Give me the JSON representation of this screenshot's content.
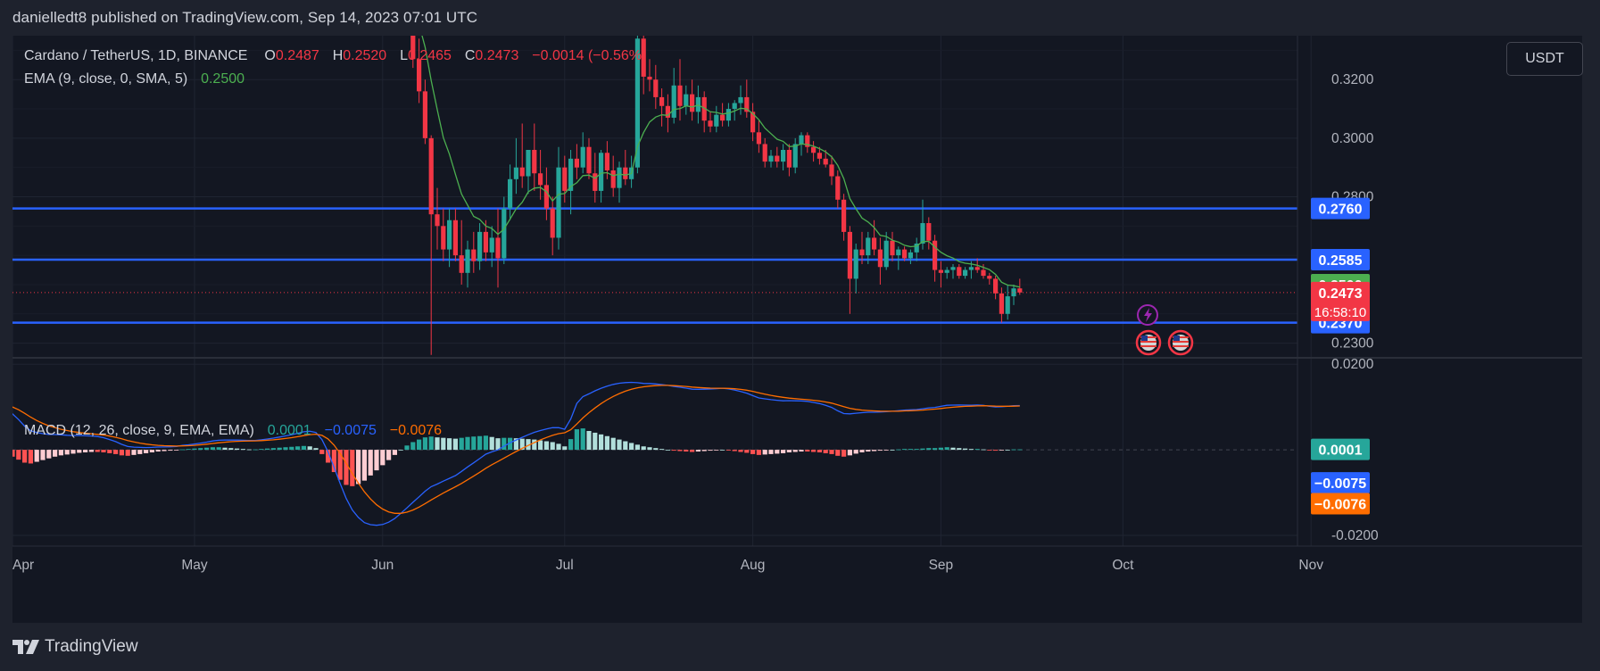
{
  "header": {
    "publisher": "danielledt8 published on TradingView.com, Sep 14, 2023 07:01 UTC"
  },
  "legend": {
    "symbol": "Cardano / TetherUS, 1D, BINANCE",
    "o_label": "O",
    "o_value": "0.2487",
    "h_label": "H",
    "h_value": "0.2520",
    "l_label": "L",
    "l_value": "0.2465",
    "c_label": "C",
    "c_value": "0.2473",
    "change": "−0.0014 (−0.56%)",
    "ema_label": "EMA (9, close, 0, SMA, 5)",
    "ema_value": "0.2500",
    "macd_label": "MACD (12, 26, close, 9, EMA, EMA)",
    "macd_hist": "0.0001",
    "macd_line": "−0.0075",
    "macd_signal": "−0.0076"
  },
  "currency_button": "USDT",
  "footer": {
    "brand": "TradingView"
  },
  "colors": {
    "up": "#26a69a",
    "down": "#f23645",
    "ema": "#4caf50",
    "hline": "#2962ff",
    "macd": "#2962ff",
    "signal": "#ff6d00",
    "hist_up_strong": "#26a69a",
    "hist_up_weak": "#b2dfdb",
    "hist_down_strong": "#ff5252",
    "hist_down_weak": "#ffcdd2"
  },
  "icons": {
    "flash": "lightning-event-icon",
    "flags": [
      "us-flag-icon",
      "us-flag-icon"
    ]
  },
  "chart_data": {
    "type": "candlestick",
    "timeframe": "1D",
    "x_axis": {
      "ticks": [
        {
          "label": "Apr",
          "date": "2023-04-01"
        },
        {
          "label": "May",
          "date": "2023-05-01"
        },
        {
          "label": "Jun",
          "date": "2023-06-01"
        },
        {
          "label": "Jul",
          "date": "2023-07-01"
        },
        {
          "label": "Aug",
          "date": "2023-08-01"
        },
        {
          "label": "Sep",
          "date": "2023-09-01"
        },
        {
          "label": "Oct",
          "date": "2023-10-01"
        },
        {
          "label": "Nov",
          "date": "2023-11-01"
        }
      ]
    },
    "price_axis": {
      "ylim": [
        0.225,
        0.335
      ],
      "ticks": [
        "0.2300",
        "0.2800",
        "0.3000",
        "0.3200"
      ]
    },
    "macd_axis": {
      "ylim": [
        -0.0225,
        0.0215
      ],
      "ticks": [
        "0.0200",
        "-0.0200"
      ]
    },
    "horizontal_levels": [
      {
        "value": 0.276,
        "label": "0.2760"
      },
      {
        "value": 0.2585,
        "label": "0.2585"
      },
      {
        "value": 0.237,
        "label": "0.2370"
      }
    ],
    "price_badges": {
      "ema": "0.2500",
      "last": "0.2473",
      "countdown": "16:58:10",
      "macd_hist": "0.0001",
      "macd_line": "−0.0075",
      "macd_signal": "−0.0076"
    },
    "last_price": 0.2473,
    "candles": [
      {
        "d": "2023-06-05",
        "o": 0.379,
        "h": 0.381,
        "l": 0.347,
        "c": 0.349
      },
      {
        "d": "2023-06-06",
        "o": 0.349,
        "h": 0.352,
        "l": 0.324,
        "c": 0.327
      },
      {
        "d": "2023-06-07",
        "o": 0.327,
        "h": 0.334,
        "l": 0.312,
        "c": 0.316
      },
      {
        "d": "2023-06-08",
        "o": 0.316,
        "h": 0.32,
        "l": 0.298,
        "c": 0.3
      },
      {
        "d": "2023-06-09",
        "o": 0.3,
        "h": 0.301,
        "l": 0.226,
        "c": 0.274
      },
      {
        "d": "2023-06-10",
        "o": 0.274,
        "h": 0.283,
        "l": 0.262,
        "c": 0.27
      },
      {
        "d": "2023-06-11",
        "o": 0.27,
        "h": 0.276,
        "l": 0.258,
        "c": 0.262
      },
      {
        "d": "2023-06-12",
        "o": 0.262,
        "h": 0.276,
        "l": 0.256,
        "c": 0.272
      },
      {
        "d": "2023-06-13",
        "o": 0.272,
        "h": 0.276,
        "l": 0.258,
        "c": 0.26
      },
      {
        "d": "2023-06-14",
        "o": 0.26,
        "h": 0.272,
        "l": 0.25,
        "c": 0.254
      },
      {
        "d": "2023-06-15",
        "o": 0.254,
        "h": 0.265,
        "l": 0.249,
        "c": 0.262
      },
      {
        "d": "2023-06-16",
        "o": 0.262,
        "h": 0.268,
        "l": 0.254,
        "c": 0.258
      },
      {
        "d": "2023-06-17",
        "o": 0.258,
        "h": 0.271,
        "l": 0.255,
        "c": 0.268
      },
      {
        "d": "2023-06-18",
        "o": 0.268,
        "h": 0.272,
        "l": 0.258,
        "c": 0.261
      },
      {
        "d": "2023-06-19",
        "o": 0.261,
        "h": 0.27,
        "l": 0.256,
        "c": 0.266
      },
      {
        "d": "2023-06-20",
        "o": 0.266,
        "h": 0.276,
        "l": 0.249,
        "c": 0.259
      },
      {
        "d": "2023-06-21",
        "o": 0.259,
        "h": 0.28,
        "l": 0.257,
        "c": 0.276
      },
      {
        "d": "2023-06-22",
        "o": 0.276,
        "h": 0.291,
        "l": 0.272,
        "c": 0.286
      },
      {
        "d": "2023-06-23",
        "o": 0.286,
        "h": 0.3,
        "l": 0.281,
        "c": 0.29
      },
      {
        "d": "2023-06-24",
        "o": 0.29,
        "h": 0.305,
        "l": 0.283,
        "c": 0.287
      },
      {
        "d": "2023-06-25",
        "o": 0.287,
        "h": 0.296,
        "l": 0.281,
        "c": 0.296
      },
      {
        "d": "2023-06-26",
        "o": 0.296,
        "h": 0.305,
        "l": 0.282,
        "c": 0.288
      },
      {
        "d": "2023-06-27",
        "o": 0.288,
        "h": 0.296,
        "l": 0.279,
        "c": 0.284
      },
      {
        "d": "2023-06-28",
        "o": 0.284,
        "h": 0.29,
        "l": 0.272,
        "c": 0.276
      },
      {
        "d": "2023-06-29",
        "o": 0.276,
        "h": 0.28,
        "l": 0.26,
        "c": 0.266
      },
      {
        "d": "2023-06-30",
        "o": 0.266,
        "h": 0.297,
        "l": 0.262,
        "c": 0.29
      },
      {
        "d": "2023-07-01",
        "o": 0.29,
        "h": 0.294,
        "l": 0.278,
        "c": 0.282
      },
      {
        "d": "2023-07-02",
        "o": 0.282,
        "h": 0.296,
        "l": 0.274,
        "c": 0.293
      },
      {
        "d": "2023-07-03",
        "o": 0.293,
        "h": 0.298,
        "l": 0.286,
        "c": 0.29
      },
      {
        "d": "2023-07-04",
        "o": 0.29,
        "h": 0.302,
        "l": 0.288,
        "c": 0.297
      },
      {
        "d": "2023-07-05",
        "o": 0.297,
        "h": 0.3,
        "l": 0.286,
        "c": 0.288
      },
      {
        "d": "2023-07-06",
        "o": 0.288,
        "h": 0.295,
        "l": 0.278,
        "c": 0.282
      },
      {
        "d": "2023-07-07",
        "o": 0.282,
        "h": 0.296,
        "l": 0.278,
        "c": 0.295
      },
      {
        "d": "2023-07-08",
        "o": 0.295,
        "h": 0.299,
        "l": 0.286,
        "c": 0.289
      },
      {
        "d": "2023-07-09",
        "o": 0.289,
        "h": 0.294,
        "l": 0.28,
        "c": 0.283
      },
      {
        "d": "2023-07-10",
        "o": 0.283,
        "h": 0.292,
        "l": 0.278,
        "c": 0.29
      },
      {
        "d": "2023-07-11",
        "o": 0.29,
        "h": 0.296,
        "l": 0.284,
        "c": 0.286
      },
      {
        "d": "2023-07-12",
        "o": 0.286,
        "h": 0.294,
        "l": 0.283,
        "c": 0.29
      },
      {
        "d": "2023-07-13",
        "o": 0.29,
        "h": 0.34,
        "l": 0.288,
        "c": 0.334
      },
      {
        "d": "2023-07-14",
        "o": 0.334,
        "h": 0.338,
        "l": 0.315,
        "c": 0.321
      },
      {
        "d": "2023-07-15",
        "o": 0.321,
        "h": 0.327,
        "l": 0.316,
        "c": 0.32
      },
      {
        "d": "2023-07-16",
        "o": 0.32,
        "h": 0.325,
        "l": 0.31,
        "c": 0.314
      },
      {
        "d": "2023-07-17",
        "o": 0.314,
        "h": 0.317,
        "l": 0.304,
        "c": 0.311
      },
      {
        "d": "2023-07-18",
        "o": 0.311,
        "h": 0.315,
        "l": 0.302,
        "c": 0.307
      },
      {
        "d": "2023-07-19",
        "o": 0.307,
        "h": 0.324,
        "l": 0.305,
        "c": 0.318
      },
      {
        "d": "2023-07-20",
        "o": 0.318,
        "h": 0.327,
        "l": 0.306,
        "c": 0.311
      },
      {
        "d": "2023-07-21",
        "o": 0.311,
        "h": 0.318,
        "l": 0.308,
        "c": 0.315
      },
      {
        "d": "2023-07-22",
        "o": 0.315,
        "h": 0.32,
        "l": 0.306,
        "c": 0.309
      },
      {
        "d": "2023-07-23",
        "o": 0.309,
        "h": 0.318,
        "l": 0.305,
        "c": 0.314
      },
      {
        "d": "2023-07-24",
        "o": 0.314,
        "h": 0.316,
        "l": 0.302,
        "c": 0.306
      },
      {
        "d": "2023-07-25",
        "o": 0.306,
        "h": 0.309,
        "l": 0.302,
        "c": 0.304
      },
      {
        "d": "2023-07-26",
        "o": 0.304,
        "h": 0.311,
        "l": 0.302,
        "c": 0.308
      },
      {
        "d": "2023-07-27",
        "o": 0.308,
        "h": 0.312,
        "l": 0.304,
        "c": 0.306
      },
      {
        "d": "2023-07-28",
        "o": 0.306,
        "h": 0.312,
        "l": 0.304,
        "c": 0.31
      },
      {
        "d": "2023-07-29",
        "o": 0.31,
        "h": 0.313,
        "l": 0.306,
        "c": 0.312
      },
      {
        "d": "2023-07-30",
        "o": 0.312,
        "h": 0.318,
        "l": 0.308,
        "c": 0.314
      },
      {
        "d": "2023-07-31",
        "o": 0.314,
        "h": 0.32,
        "l": 0.307,
        "c": 0.309
      },
      {
        "d": "2023-08-01",
        "o": 0.309,
        "h": 0.312,
        "l": 0.299,
        "c": 0.302
      },
      {
        "d": "2023-08-02",
        "o": 0.302,
        "h": 0.306,
        "l": 0.295,
        "c": 0.298
      },
      {
        "d": "2023-08-03",
        "o": 0.298,
        "h": 0.3,
        "l": 0.29,
        "c": 0.292
      },
      {
        "d": "2023-08-04",
        "o": 0.292,
        "h": 0.296,
        "l": 0.29,
        "c": 0.294
      },
      {
        "d": "2023-08-05",
        "o": 0.294,
        "h": 0.297,
        "l": 0.29,
        "c": 0.292
      },
      {
        "d": "2023-08-06",
        "o": 0.292,
        "h": 0.298,
        "l": 0.289,
        "c": 0.296
      },
      {
        "d": "2023-08-07",
        "o": 0.296,
        "h": 0.298,
        "l": 0.287,
        "c": 0.29
      },
      {
        "d": "2023-08-08",
        "o": 0.29,
        "h": 0.3,
        "l": 0.288,
        "c": 0.298
      },
      {
        "d": "2023-08-09",
        "o": 0.298,
        "h": 0.302,
        "l": 0.294,
        "c": 0.301
      },
      {
        "d": "2023-08-10",
        "o": 0.301,
        "h": 0.302,
        "l": 0.295,
        "c": 0.297
      },
      {
        "d": "2023-08-11",
        "o": 0.297,
        "h": 0.299,
        "l": 0.292,
        "c": 0.295
      },
      {
        "d": "2023-08-12",
        "o": 0.295,
        "h": 0.297,
        "l": 0.291,
        "c": 0.293
      },
      {
        "d": "2023-08-13",
        "o": 0.293,
        "h": 0.296,
        "l": 0.29,
        "c": 0.291
      },
      {
        "d": "2023-08-14",
        "o": 0.291,
        "h": 0.294,
        "l": 0.284,
        "c": 0.287
      },
      {
        "d": "2023-08-15",
        "o": 0.287,
        "h": 0.289,
        "l": 0.276,
        "c": 0.279
      },
      {
        "d": "2023-08-16",
        "o": 0.279,
        "h": 0.281,
        "l": 0.265,
        "c": 0.268
      },
      {
        "d": "2023-08-17",
        "o": 0.268,
        "h": 0.27,
        "l": 0.24,
        "c": 0.252
      },
      {
        "d": "2023-08-18",
        "o": 0.252,
        "h": 0.264,
        "l": 0.247,
        "c": 0.262
      },
      {
        "d": "2023-08-19",
        "o": 0.262,
        "h": 0.268,
        "l": 0.257,
        "c": 0.26
      },
      {
        "d": "2023-08-20",
        "o": 0.26,
        "h": 0.268,
        "l": 0.257,
        "c": 0.266
      },
      {
        "d": "2023-08-21",
        "o": 0.266,
        "h": 0.272,
        "l": 0.26,
        "c": 0.262
      },
      {
        "d": "2023-08-22",
        "o": 0.262,
        "h": 0.266,
        "l": 0.25,
        "c": 0.256
      },
      {
        "d": "2023-08-23",
        "o": 0.256,
        "h": 0.268,
        "l": 0.255,
        "c": 0.265
      },
      {
        "d": "2023-08-24",
        "o": 0.265,
        "h": 0.268,
        "l": 0.258,
        "c": 0.26
      },
      {
        "d": "2023-08-25",
        "o": 0.26,
        "h": 0.263,
        "l": 0.255,
        "c": 0.262
      },
      {
        "d": "2023-08-26",
        "o": 0.262,
        "h": 0.263,
        "l": 0.258,
        "c": 0.259
      },
      {
        "d": "2023-08-27",
        "o": 0.259,
        "h": 0.262,
        "l": 0.257,
        "c": 0.261
      },
      {
        "d": "2023-08-28",
        "o": 0.261,
        "h": 0.266,
        "l": 0.258,
        "c": 0.264
      },
      {
        "d": "2023-08-29",
        "o": 0.264,
        "h": 0.279,
        "l": 0.262,
        "c": 0.271
      },
      {
        "d": "2023-08-30",
        "o": 0.271,
        "h": 0.273,
        "l": 0.262,
        "c": 0.265
      },
      {
        "d": "2023-08-31",
        "o": 0.265,
        "h": 0.267,
        "l": 0.251,
        "c": 0.255
      },
      {
        "d": "2023-09-01",
        "o": 0.255,
        "h": 0.258,
        "l": 0.249,
        "c": 0.254
      },
      {
        "d": "2023-09-02",
        "o": 0.254,
        "h": 0.256,
        "l": 0.252,
        "c": 0.255
      },
      {
        "d": "2023-09-03",
        "o": 0.255,
        "h": 0.257,
        "l": 0.252,
        "c": 0.256
      },
      {
        "d": "2023-09-04",
        "o": 0.256,
        "h": 0.257,
        "l": 0.252,
        "c": 0.253
      },
      {
        "d": "2023-09-05",
        "o": 0.253,
        "h": 0.256,
        "l": 0.252,
        "c": 0.255
      },
      {
        "d": "2023-09-06",
        "o": 0.255,
        "h": 0.258,
        "l": 0.252,
        "c": 0.256
      },
      {
        "d": "2023-09-07",
        "o": 0.256,
        "h": 0.259,
        "l": 0.254,
        "c": 0.255
      },
      {
        "d": "2023-09-08",
        "o": 0.255,
        "h": 0.257,
        "l": 0.252,
        "c": 0.253
      },
      {
        "d": "2023-09-09",
        "o": 0.253,
        "h": 0.254,
        "l": 0.25,
        "c": 0.252
      },
      {
        "d": "2023-09-10",
        "o": 0.252,
        "h": 0.253,
        "l": 0.245,
        "c": 0.247
      },
      {
        "d": "2023-09-11",
        "o": 0.247,
        "h": 0.249,
        "l": 0.237,
        "c": 0.24
      },
      {
        "d": "2023-09-12",
        "o": 0.24,
        "h": 0.25,
        "l": 0.238,
        "c": 0.246
      },
      {
        "d": "2023-09-13",
        "o": 0.246,
        "h": 0.25,
        "l": 0.243,
        "c": 0.2487
      },
      {
        "d": "2023-09-14",
        "o": 0.2487,
        "h": 0.252,
        "l": 0.2465,
        "c": 0.2473
      }
    ],
    "macd_hist": [
      0.0023,
      0.0022,
      0.0019,
      0.0016,
      0.0014,
      0.0012,
      0.0011,
      0.0009,
      0.001,
      0.0012,
      0.0014,
      0.0017,
      0.0021,
      0.0025,
      0.0029,
      0.003,
      0.0026,
      0.0015,
      0.0003,
      -0.0008,
      -0.0016,
      -0.0023,
      -0.003,
      -0.0032,
      -0.0028,
      -0.0024,
      -0.002,
      -0.0016,
      -0.0013,
      -0.0011,
      -0.0009,
      -0.0007,
      -0.0006,
      -0.0005,
      -0.0005,
      -0.0006,
      -0.0008,
      -0.001,
      -0.0013,
      -0.0014,
      -0.0012,
      -0.001,
      -0.0008,
      -0.0006,
      -0.0004,
      -0.0003,
      -0.0002,
      -0.0001,
      0.0001,
      0.0002,
      0.0003,
      0.0004,
      0.0005,
      0.0006,
      0.0006,
      0.0005,
      0.0004,
      0.0003,
      0.0002,
      0.0001,
      0.0001,
      0.0002,
      0.0003,
      0.0004,
      0.0005,
      0.0006,
      0.0007,
      0.0008,
      0.0009,
      0.0008,
      0.0004,
      -0.001,
      -0.003,
      -0.0052,
      -0.007,
      -0.0082,
      -0.0085,
      -0.008,
      -0.0072,
      -0.006,
      -0.0048,
      -0.0036,
      -0.0024,
      -0.0012,
      0.0,
      0.001,
      0.0018,
      0.0024,
      0.0029,
      0.0031,
      0.0029,
      0.0028,
      0.0027,
      0.0026,
      0.0028,
      0.003,
      0.0031,
      0.0032,
      0.0033,
      0.003,
      0.0027,
      0.0028,
      0.0028,
      0.0027,
      0.0026,
      0.0025,
      0.0024,
      0.0022,
      0.002,
      0.0018,
      0.0014,
      0.0008,
      0.0025,
      0.0048,
      0.005,
      0.0044,
      0.004,
      0.0036,
      0.0032,
      0.0028,
      0.0024,
      0.002,
      0.0016,
      0.0012,
      0.0008,
      0.0006,
      0.0004,
      0.0002,
      0.0,
      -0.0002,
      -0.0003,
      -0.0004,
      -0.0005,
      -0.0004,
      -0.0003,
      -0.0002,
      -0.0001,
      0.0,
      -0.0001,
      -0.0003,
      -0.0005,
      -0.0007,
      -0.001,
      -0.0012,
      -0.0011,
      -0.001,
      -0.0009,
      -0.0008,
      -0.0006,
      -0.0005,
      -0.0004,
      -0.0004,
      -0.0005,
      -0.0006,
      -0.0008,
      -0.001,
      -0.0014,
      -0.0016,
      -0.0013,
      -0.0009,
      -0.0006,
      -0.0004,
      -0.0003,
      -0.0002,
      -0.0001,
      0.0,
      0.0001,
      0.0002,
      0.0002,
      0.0002,
      0.0003,
      0.0004,
      0.0004,
      0.0005,
      0.0006,
      0.0005,
      0.0004,
      0.0003,
      0.0002,
      0.0002,
      0.0001,
      -0.0001,
      -0.0002,
      -0.0001,
      0.0,
      0.0001,
      0.0001
    ]
  }
}
